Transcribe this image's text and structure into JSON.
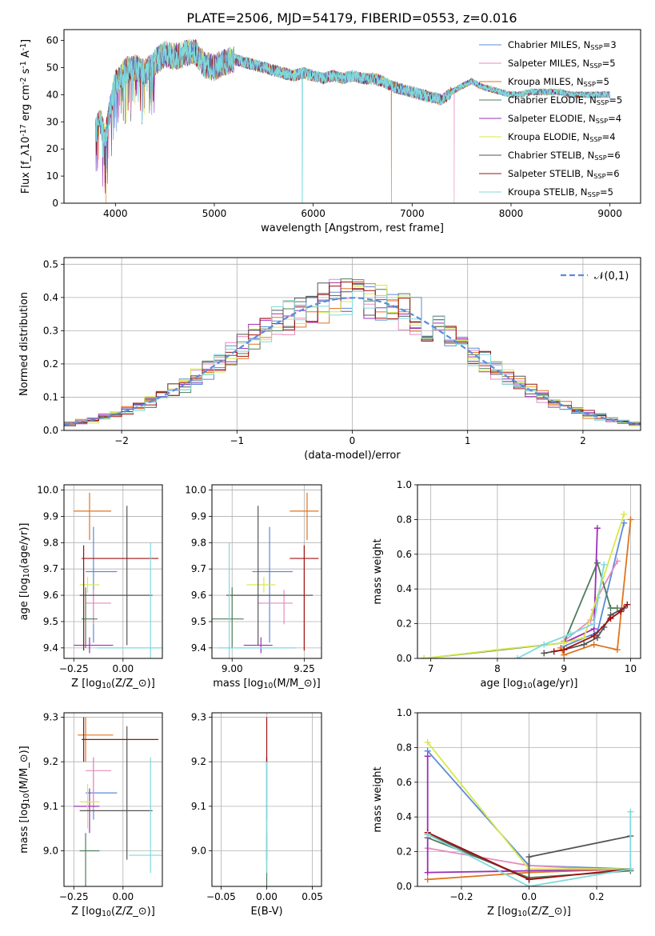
{
  "figure": {
    "title": "PLATE=2506, MJD=54179, FIBERID=0553, z=0.016"
  },
  "colors": {
    "series": [
      "#5b8bd9",
      "#e58cbe",
      "#e0741e",
      "#4f7d5b",
      "#9b30b8",
      "#d8e84a",
      "#555555",
      "#a01010",
      "#7fd9dc"
    ],
    "gauss": "#5b8bd9",
    "grid": "#b0b0b0"
  },
  "series_legend": [
    {
      "label": "Chabrier MILES, N$_{SSP}$=3"
    },
    {
      "label": "Salpeter MILES, N$_{SSP}$=5"
    },
    {
      "label": "Kroupa MILES, N$_{SSP}$=5"
    },
    {
      "label": "Chabrier ELODIE, N$_{SSP}$=5"
    },
    {
      "label": "Salpeter ELODIE, N$_{SSP}$=4"
    },
    {
      "label": "Kroupa ELODIE, N$_{SSP}$=4"
    },
    {
      "label": "Chabrier STELIB, N$_{SSP}$=6"
    },
    {
      "label": "Salpeter STELIB, N$_{SSP}$=6"
    },
    {
      "label": "Kroupa STELIB, N$_{SSP}$=5"
    }
  ],
  "chart_data": [
    {
      "id": "spectrum",
      "type": "line",
      "xlabel": "wavelength [Angstrom, rest frame]",
      "ylabel": "Flux [f$_\\lambda$10$^{-17}$ erg cm$^{-2}$ s$^{-1}$ A$^{-1}$]",
      "xlim": [
        3480,
        9310
      ],
      "ylim": [
        0,
        64
      ],
      "xticks": [
        4000,
        5000,
        6000,
        7000,
        8000,
        9000
      ],
      "yticks": [
        0,
        10,
        20,
        30,
        40,
        50,
        60
      ],
      "grid": false,
      "legend": "upper right",
      "x": [
        3800,
        3850,
        3900,
        3950,
        4000,
        4100,
        4200,
        4300,
        4400,
        4500,
        4600,
        4700,
        4800,
        4900,
        5000,
        5100,
        5200,
        5300,
        5400,
        5500,
        5600,
        5700,
        5800,
        5900,
        6000,
        6100,
        6200,
        6300,
        6400,
        6500,
        6600,
        6700,
        6800,
        6900,
        7000,
        7100,
        7200,
        7300,
        7400,
        7500,
        7600,
        7700,
        7800,
        7900,
        8000,
        8100,
        8200,
        8300,
        8400,
        8500,
        8600,
        8700,
        8800,
        8900,
        9000
      ],
      "y": [
        27,
        30,
        24,
        36,
        44,
        49,
        50,
        48,
        52,
        55,
        54,
        55,
        56,
        51,
        50,
        52,
        53,
        52,
        51,
        50,
        49,
        48,
        47,
        48,
        47,
        46,
        47,
        46,
        47,
        46,
        46,
        45,
        43,
        42,
        41,
        40,
        39,
        38,
        41,
        43,
        45,
        43,
        42,
        41,
        40,
        40,
        41,
        41,
        41,
        41,
        40,
        40,
        40,
        40,
        40
      ],
      "drops": [
        {
          "series": 2,
          "x": 3905,
          "y": 0
        },
        {
          "series": 8,
          "x": 5890,
          "y": 0
        },
        {
          "series": 2,
          "x": 6790,
          "y": 0
        },
        {
          "series": 1,
          "x": 7425,
          "y": 0
        }
      ]
    },
    {
      "id": "residuals",
      "type": "step",
      "xlabel": "(data-model)/error",
      "ylabel": "Normed distribution",
      "xlim": [
        -2.5,
        2.5
      ],
      "ylim": [
        0,
        0.52
      ],
      "xticks": [
        -2,
        -1,
        0,
        1,
        2
      ],
      "yticks": [
        0.0,
        0.1,
        0.2,
        0.3,
        0.4,
        0.5
      ],
      "grid": true,
      "legend": "upper right",
      "gaussian": {
        "label": "$\\mathcal{N}(0,1)$",
        "mu": 0,
        "sigma": 1
      }
    },
    {
      "id": "age_vs_Z",
      "type": "errorbar",
      "xlabel": "Z [log$_{10}$(Z/Z$_\\odot$)]",
      "ylabel": "age  [log$_{10}$(age/yr)]",
      "xlim": [
        -0.3,
        0.2
      ],
      "ylim": [
        9.36,
        10.02
      ],
      "xticks": [
        -0.25,
        0.0
      ],
      "xticklabels": [
        "−0.25",
        "0.00"
      ],
      "yticks": [
        9.4,
        9.5,
        9.6,
        9.7,
        9.8,
        9.9,
        10.0
      ],
      "grid": true,
      "points": [
        {
          "series": 0,
          "x": -0.15,
          "y": 9.69,
          "xl": 0.04,
          "xh": 0.12,
          "yl": 0.27,
          "yh": 0.17
        },
        {
          "series": 1,
          "x": -0.15,
          "y": 9.57,
          "xl": 0.04,
          "xh": 0.09,
          "yl": 0.08,
          "yh": 0.05
        },
        {
          "series": 2,
          "x": -0.17,
          "y": 9.92,
          "xl": 0.08,
          "xh": 0.11,
          "yl": 0.11,
          "yh": 0.07
        },
        {
          "series": 3,
          "x": -0.19,
          "y": 9.51,
          "xl": 0.02,
          "xh": 0.06,
          "yl": 0.11,
          "yh": 0.12
        },
        {
          "series": 4,
          "x": -0.17,
          "y": 9.41,
          "xl": 0.08,
          "xh": 0.12,
          "yl": 0.03,
          "yh": 0.03
        },
        {
          "series": 5,
          "x": -0.18,
          "y": 9.64,
          "xl": 0.04,
          "xh": 0.06,
          "yl": 0.03,
          "yh": 0.03
        },
        {
          "series": 6,
          "x": 0.02,
          "y": 9.6,
          "xl": 0.24,
          "xh": 0.13,
          "yl": 0.19,
          "yh": 0.34
        },
        {
          "series": 7,
          "x": -0.2,
          "y": 9.74,
          "xl": 0.01,
          "xh": 0.38,
          "yl": 0.35,
          "yh": 0.05
        },
        {
          "series": 8,
          "x": 0.14,
          "y": 9.4,
          "xl": 0.27,
          "xh": 0.1,
          "yl": 0.05,
          "yh": 0.4
        }
      ]
    },
    {
      "id": "age_vs_mass",
      "type": "errorbar",
      "xlabel": "mass [log$_{10}$(M/M$_\\odot$)]",
      "ylabel": "",
      "xlim": [
        8.93,
        9.31
      ],
      "ylim": [
        9.36,
        10.02
      ],
      "xticks": [
        9.0,
        9.25
      ],
      "xticklabels": [
        "9.00",
        "9.25"
      ],
      "yticks": [
        9.4,
        9.5,
        9.6,
        9.7,
        9.8,
        9.9,
        10.0
      ],
      "grid": true,
      "points": [
        {
          "series": 0,
          "x": 9.13,
          "y": 9.69,
          "xl": 0.06,
          "xh": 0.08,
          "yl": 0.27,
          "yh": 0.17
        },
        {
          "series": 1,
          "x": 9.18,
          "y": 9.57,
          "xl": 0.09,
          "xh": 0.03,
          "yl": 0.08,
          "yh": 0.05
        },
        {
          "series": 2,
          "x": 9.26,
          "y": 9.92,
          "xl": 0.06,
          "xh": 0.04,
          "yl": 0.11,
          "yh": 0.07
        },
        {
          "series": 3,
          "x": 9.0,
          "y": 9.51,
          "xl": 0.08,
          "xh": 0.04,
          "yl": 0.11,
          "yh": 0.12
        },
        {
          "series": 4,
          "x": 9.1,
          "y": 9.41,
          "xl": 0.06,
          "xh": 0.04,
          "yl": 0.03,
          "yh": 0.03
        },
        {
          "series": 5,
          "x": 9.11,
          "y": 9.64,
          "xl": 0.06,
          "xh": 0.04,
          "yl": 0.03,
          "yh": 0.03
        },
        {
          "series": 6,
          "x": 9.09,
          "y": 9.6,
          "xl": 0.11,
          "xh": 0.19,
          "yl": 0.19,
          "yh": 0.34
        },
        {
          "series": 7,
          "x": 9.25,
          "y": 9.74,
          "xl": 0.05,
          "xh": 0.05,
          "yl": 0.35,
          "yh": 0.05
        },
        {
          "series": 8,
          "x": 8.99,
          "y": 9.4,
          "xl": 0.04,
          "xh": 0.23,
          "yl": 0.05,
          "yh": 0.4
        }
      ]
    },
    {
      "id": "weight_vs_age",
      "type": "line",
      "xlabel": "age  [log$_{10}$(age/yr)]",
      "ylabel": "mass weight",
      "xlim": [
        6.8,
        10.15
      ],
      "ylim": [
        0,
        1
      ],
      "xticks": [
        7,
        8,
        9,
        10
      ],
      "yticks": [
        0.0,
        0.2,
        0.4,
        0.6,
        0.8,
        1.0
      ],
      "grid": true,
      "series": [
        {
          "series": 0,
          "x": [
            9.0,
            9.5,
            9.9
          ],
          "y": [
            0.07,
            0.15,
            0.78
          ]
        },
        {
          "series": 1,
          "x": [
            9.0,
            9.4,
            9.45,
            9.5,
            9.8
          ],
          "y": [
            0.1,
            0.22,
            0.28,
            0.35,
            0.56
          ]
        },
        {
          "series": 2,
          "x": [
            8.95,
            9.0,
            9.45,
            9.8,
            10.0
          ],
          "y": [
            0.06,
            0.02,
            0.08,
            0.05,
            0.8
          ]
        },
        {
          "series": 3,
          "x": [
            6.9,
            9.0,
            9.5,
            9.7,
            9.8
          ],
          "y": [
            0.0,
            0.09,
            0.55,
            0.29,
            0.29
          ]
        },
        {
          "series": 4,
          "x": [
            9.0,
            9.45,
            9.5
          ],
          "y": [
            0.09,
            0.17,
            0.75
          ]
        },
        {
          "series": 5,
          "x": [
            6.9,
            8.0,
            9.0,
            9.3,
            9.9
          ],
          "y": [
            0.0,
            0.05,
            0.09,
            0.12,
            0.83
          ]
        },
        {
          "series": 6,
          "x": [
            8.7,
            9.0,
            9.3,
            9.5,
            9.6,
            9.7,
            9.9
          ],
          "y": [
            0.03,
            0.05,
            0.08,
            0.12,
            0.18,
            0.25,
            0.29
          ]
        },
        {
          "series": 7,
          "x": [
            8.85,
            9.0,
            9.45,
            9.7,
            9.85,
            9.95
          ],
          "y": [
            0.04,
            0.05,
            0.13,
            0.23,
            0.27,
            0.31
          ]
        },
        {
          "series": 8,
          "x": [
            8.3,
            8.7,
            9.1,
            9.45,
            9.6
          ],
          "y": [
            0.0,
            0.08,
            0.14,
            0.2,
            0.54
          ]
        }
      ]
    },
    {
      "id": "mass_vs_Z",
      "type": "errorbar",
      "xlabel": "Z [log$_{10}$(Z/Z$_\\odot$)]",
      "ylabel": "mass [log$_{10}$(M/M$_\\odot$)]",
      "xlim": [
        -0.3,
        0.2
      ],
      "ylim": [
        8.92,
        9.31
      ],
      "xticks": [
        -0.25,
        0.0
      ],
      "xticklabels": [
        "−0.25",
        "0.00"
      ],
      "yticks": [
        9.0,
        9.1,
        9.2,
        9.3
      ],
      "grid": true,
      "points": [
        {
          "series": 0,
          "x": -0.15,
          "y": 9.13,
          "xl": 0.04,
          "xh": 0.12,
          "yl": 0.06,
          "yh": 0.08
        },
        {
          "series": 1,
          "x": -0.15,
          "y": 9.18,
          "xl": 0.04,
          "xh": 0.09,
          "yl": 0.09,
          "yh": 0.03
        },
        {
          "series": 2,
          "x": -0.19,
          "y": 9.26,
          "xl": 0.04,
          "xh": 0.14,
          "yl": 0.06,
          "yh": 0.04
        },
        {
          "series": 3,
          "x": -0.19,
          "y": 9.0,
          "xl": 0.03,
          "xh": 0.07,
          "yl": 0.08,
          "yh": 0.04
        },
        {
          "series": 4,
          "x": -0.17,
          "y": 9.1,
          "xl": 0.08,
          "xh": 0.05,
          "yl": 0.06,
          "yh": 0.04
        },
        {
          "series": 5,
          "x": -0.18,
          "y": 9.11,
          "xl": 0.04,
          "xh": 0.06,
          "yl": 0.06,
          "yh": 0.04
        },
        {
          "series": 6,
          "x": 0.02,
          "y": 9.09,
          "xl": 0.24,
          "xh": 0.13,
          "yl": 0.11,
          "yh": 0.19
        },
        {
          "series": 7,
          "x": -0.2,
          "y": 9.25,
          "xl": 0.01,
          "xh": 0.38,
          "yl": 0.05,
          "yh": 0.05
        },
        {
          "series": 8,
          "x": 0.14,
          "y": 8.99,
          "xl": 0.11,
          "xh": 0.06,
          "yl": 0.04,
          "yh": 0.22
        }
      ]
    },
    {
      "id": "mass_vs_ebv",
      "type": "errorbar",
      "xlabel": "E(B-V)",
      "ylabel": "",
      "xlim": [
        -0.06,
        0.06
      ],
      "ylim": [
        8.92,
        9.31
      ],
      "xticks": [
        -0.05,
        0.0,
        0.05
      ],
      "xticklabels": [
        "−0.05",
        "0.00",
        "0.05"
      ],
      "yticks": [
        9.0,
        9.1,
        9.2,
        9.3
      ],
      "grid": true,
      "points": [
        {
          "series": 0,
          "x": 0.0,
          "y": 9.13,
          "xl": 0,
          "xh": 0,
          "yl": 0.06,
          "yh": 0.08
        },
        {
          "series": 3,
          "x": 0.0,
          "y": 9.0,
          "xl": 0,
          "xh": 0,
          "yl": 0.08,
          "yh": 0.04
        },
        {
          "series": 6,
          "x": 0.0,
          "y": 9.09,
          "xl": 0,
          "xh": 0,
          "yl": 0.11,
          "yh": 0.12
        },
        {
          "series": 8,
          "x": 0.0,
          "y": 8.99,
          "xl": 0,
          "xh": 0,
          "yl": 0.04,
          "yh": 0.22
        },
        {
          "series": 7,
          "x": 0.0,
          "y": 9.25,
          "xl": 0,
          "xh": 0,
          "yl": 0.05,
          "yh": 0.05
        }
      ]
    },
    {
      "id": "weight_vs_Z",
      "type": "line",
      "xlabel": "Z [log$_{10}$(Z/Z$_\\odot$)]",
      "ylabel": "mass weight",
      "xlim": [
        -0.33,
        0.33
      ],
      "ylim": [
        0,
        1
      ],
      "xticks": [
        -0.2,
        0.0,
        0.2
      ],
      "xticklabels": [
        "−0.2",
        "0.0",
        "0.2"
      ],
      "yticks": [
        0.0,
        0.2,
        0.4,
        0.6,
        0.8,
        1.0
      ],
      "grid": true,
      "series": [
        {
          "series": 0,
          "x": [
            -0.3,
            0.0,
            0.3
          ],
          "y": [
            0.78,
            0.12,
            0.1
          ]
        },
        {
          "series": 1,
          "x": [
            -0.3,
            0.0,
            0.3
          ],
          "y": [
            0.22,
            0.12,
            0.09
          ]
        },
        {
          "series": 2,
          "x": [
            -0.3,
            0.0,
            0.3
          ],
          "y": [
            0.04,
            0.08,
            0.1
          ]
        },
        {
          "series": 3,
          "x": [
            -0.3,
            0.0,
            0.3
          ],
          "y": [
            0.28,
            0.05,
            0.09
          ]
        },
        {
          "series": 4,
          "x": [
            -0.3,
            -0.3,
            0.0,
            0.3
          ],
          "y": [
            0.75,
            0.08,
            0.09,
            0.1
          ]
        },
        {
          "series": 5,
          "x": [
            -0.3,
            0.0,
            0.3
          ],
          "y": [
            0.83,
            0.1,
            0.1
          ]
        },
        {
          "series": 6,
          "x": [
            -0.3,
            0.0,
            0.0,
            0.3
          ],
          "y": [
            0.3,
            0.04,
            0.17,
            0.29
          ]
        },
        {
          "series": 7,
          "x": [
            -0.3,
            0.0,
            0.3
          ],
          "y": [
            0.31,
            0.04,
            0.1
          ]
        },
        {
          "series": 8,
          "x": [
            -0.3,
            0.0,
            0.3,
            0.3
          ],
          "y": [
            0.3,
            0.0,
            0.1,
            0.43
          ]
        }
      ]
    }
  ]
}
